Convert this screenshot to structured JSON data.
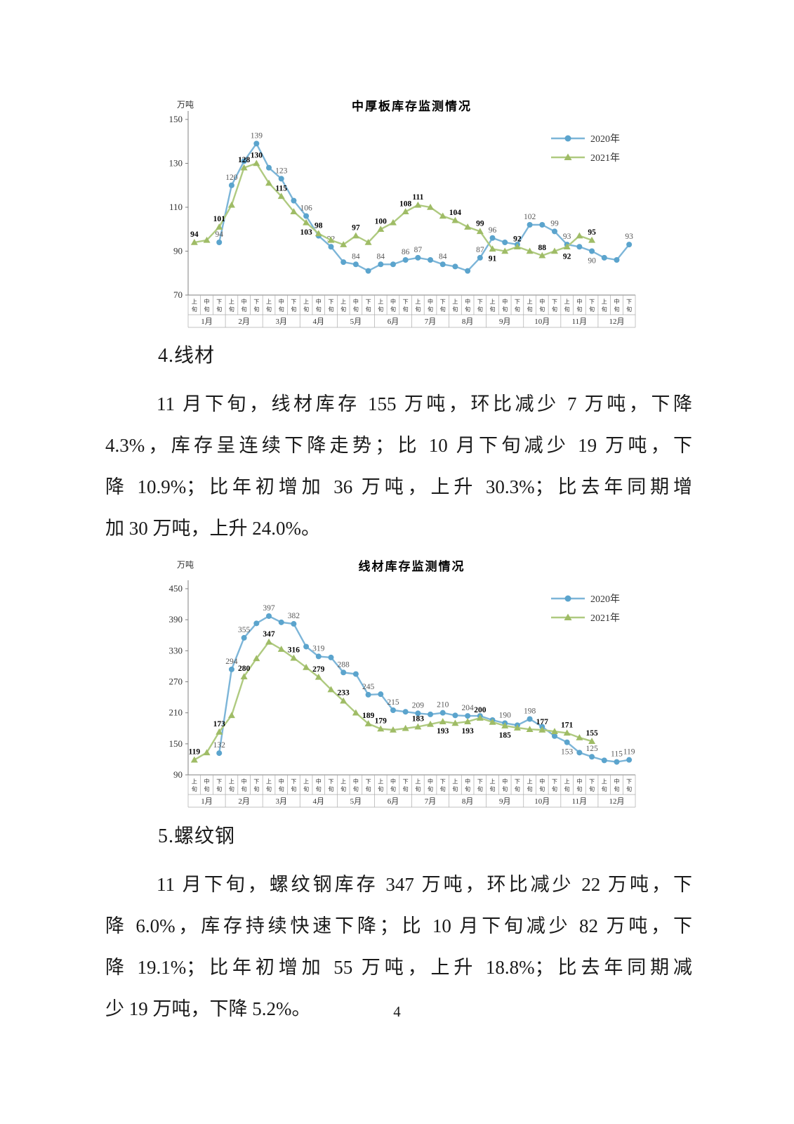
{
  "page": {
    "number": "4"
  },
  "colors": {
    "series2020_line": "#7CB5D8",
    "series2020_marker": "#5BA4CD",
    "series2021_line": "#AFCA80",
    "series2021_marker": "#9FBC66",
    "axis": "#808080",
    "label2020": "#595959",
    "label2021": "#000000"
  },
  "sections": [
    {
      "heading": "4.线材",
      "lines": [
        "11 月下旬，线材库存 155 万吨，环比减少 7 万吨，下降",
        "4.3%，库存呈连续下降走势；比 10 月下旬减少 19 万吨，下",
        "降 10.9%；比年初增加 36 万吨，上升 30.3%；比去年同期增",
        "加 30 万吨，上升 24.0%。"
      ]
    },
    {
      "heading": "5.螺纹钢",
      "lines": [
        "11 月下旬，螺纹钢库存 347 万吨，环比减少 22 万吨，下",
        "降 6.0%，库存持续快速下降；比 10 月下旬减少 82 万吨，下",
        "降 19.1%；比年初增加 55 万吨，上升 18.8%；比去年同期减",
        "少 19 万吨，下降 5.2%。"
      ]
    }
  ],
  "chart_data": [
    {
      "type": "line",
      "title": "中厚板库存监测情况",
      "unit_label": "万吨",
      "ylim": [
        70,
        150
      ],
      "y_ticks": [
        70,
        90,
        110,
        130,
        150
      ],
      "months": [
        "1月",
        "2月",
        "3月",
        "4月",
        "5月",
        "6月",
        "7月",
        "8月",
        "9月",
        "10月",
        "11月",
        "12月"
      ],
      "periods": [
        "上旬",
        "中旬",
        "下旬"
      ],
      "legend_position": "right-top",
      "grid": false,
      "series": [
        {
          "name": "2020年",
          "marker": "circle",
          "line_color": "#7CB5D8",
          "marker_color": "#5BA4CD",
          "values": [
            null,
            null,
            94,
            120,
            131,
            139,
            128,
            123,
            113,
            106,
            97,
            92,
            85,
            84,
            81,
            84,
            84,
            86,
            87,
            86,
            84,
            83,
            81,
            87,
            96,
            94,
            93,
            102,
            102,
            99,
            93,
            92,
            90,
            87,
            86,
            93
          ],
          "labels": {
            "2": "94",
            "3": "120",
            "5": "139",
            "7": "123",
            "9": "106",
            "11": "92",
            "13": "84",
            "15": "84",
            "17": "86",
            "18": "87",
            "20": "84",
            "23": "87",
            "24": "96",
            "27": "102",
            "29": "99",
            "30": "93",
            "32": "90",
            "35": "93"
          }
        },
        {
          "name": "2021年",
          "marker": "triangle",
          "line_color": "#AFCA80",
          "marker_color": "#9FBC66",
          "values": [
            94,
            95,
            101,
            111,
            128,
            130,
            121,
            115,
            108,
            103,
            98,
            95,
            93,
            97,
            94,
            100,
            103,
            108,
            111,
            110,
            106,
            104,
            101,
            99,
            91,
            90,
            92,
            90,
            88,
            90,
            92,
            97,
            95,
            null,
            null,
            null
          ],
          "labels": {
            "0": "94",
            "2": "101",
            "4": "128",
            "5": "130",
            "7": "115",
            "9": "103",
            "10": "98",
            "13": "97",
            "15": "100",
            "17": "108",
            "18": "111",
            "21": "104",
            "23": "99",
            "24": "91",
            "26": "92",
            "28": "88",
            "30": "92",
            "32": "95"
          }
        }
      ]
    },
    {
      "type": "line",
      "title": "线材库存监测情况",
      "unit_label": "万吨",
      "ylim": [
        90,
        450
      ],
      "y_ticks": [
        90,
        150,
        210,
        270,
        330,
        390,
        450
      ],
      "months": [
        "1月",
        "2月",
        "3月",
        "4月",
        "5月",
        "6月",
        "7月",
        "8月",
        "9月",
        "10月",
        "11月",
        "12月"
      ],
      "periods": [
        "上旬",
        "中旬",
        "下旬"
      ],
      "legend_position": "right-top",
      "grid": false,
      "series": [
        {
          "name": "2020年",
          "marker": "circle",
          "line_color": "#7CB5D8",
          "marker_color": "#5BA4CD",
          "values": [
            null,
            null,
            132,
            294,
            355,
            383,
            397,
            385,
            382,
            338,
            319,
            317,
            288,
            285,
            245,
            246,
            215,
            212,
            209,
            207,
            210,
            205,
            204,
            204,
            196,
            190,
            186,
            198,
            183,
            165,
            153,
            133,
            125,
            118,
            115,
            119
          ],
          "labels": {
            "2": "132",
            "3": "294",
            "4": "355",
            "6": "397",
            "8": "382",
            "10": "319",
            "12": "288",
            "14": "245",
            "16": "215",
            "18": "209",
            "20": "210",
            "22": "204",
            "25": "190",
            "27": "198",
            "30": "153",
            "32": "125",
            "34": "115",
            "35": "119"
          }
        },
        {
          "name": "2021年",
          "marker": "triangle",
          "line_color": "#AFCA80",
          "marker_color": "#9FBC66",
          "values": [
            119,
            133,
            173,
            205,
            280,
            315,
            347,
            333,
            316,
            298,
            279,
            255,
            233,
            210,
            189,
            179,
            177,
            180,
            183,
            188,
            193,
            190,
            193,
            200,
            192,
            185,
            181,
            178,
            177,
            174,
            171,
            162,
            155,
            null,
            null,
            null
          ],
          "labels": {
            "0": "119",
            "2": "173",
            "4": "280",
            "6": "347",
            "8": "316",
            "10": "279",
            "12": "233",
            "14": "189",
            "15": "179",
            "18": "183",
            "20": "193",
            "22": "193",
            "23": "200",
            "25": "185",
            "28": "177",
            "30": "171",
            "32": "155"
          }
        }
      ]
    }
  ]
}
